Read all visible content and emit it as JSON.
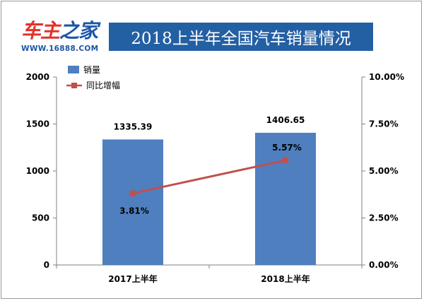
{
  "brand": {
    "logo_part1": "车主",
    "logo_part2": "之家",
    "url": "WWW.16888.COM"
  },
  "header": {
    "title": "2018上半年全国汽车销量情况"
  },
  "colors": {
    "bar": "#4f7fbf",
    "line": "#c0504d",
    "title_bg": "#235fa3"
  },
  "chart_data": {
    "type": "bar+line",
    "title": "2018上半年全国汽车销量情况",
    "categories": [
      "2017上半年",
      "2018上半年"
    ],
    "series": [
      {
        "name": "销量",
        "type": "bar",
        "axis": "left",
        "values": [
          1335.39,
          1406.65
        ],
        "labels": [
          "1335.39",
          "1406.65"
        ]
      },
      {
        "name": "同比增幅",
        "type": "line",
        "axis": "right",
        "values": [
          3.81,
          5.57
        ],
        "labels": [
          "3.81%",
          "5.57%"
        ]
      }
    ],
    "y_left": {
      "min": 0,
      "max": 2000,
      "ticks": [
        0,
        500,
        1000,
        1500,
        2000
      ],
      "tick_labels": [
        "0",
        "500",
        "1000",
        "1500",
        "2000"
      ]
    },
    "y_right": {
      "min": 0,
      "max": 10,
      "ticks": [
        0,
        2.5,
        5,
        7.5,
        10
      ],
      "tick_labels": [
        "0.00%",
        "2.50%",
        "5.00%",
        "7.50%",
        "10.00%"
      ]
    },
    "legend_position": "top-left",
    "grid": false
  }
}
